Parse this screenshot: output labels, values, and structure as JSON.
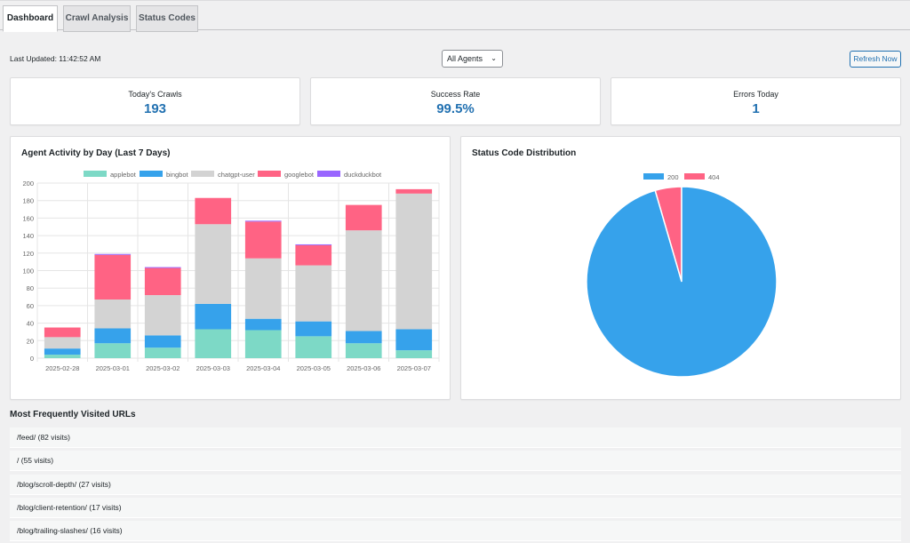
{
  "tabs": [
    {
      "label": "Dashboard",
      "active": true
    },
    {
      "label": "Crawl Analysis",
      "active": false
    },
    {
      "label": "Status Codes",
      "active": false
    }
  ],
  "toolbar": {
    "last_updated": "Last Updated: 11:42:52 AM",
    "agent_filter": "All Agents",
    "refresh_label": "Refresh Now"
  },
  "stats": [
    {
      "label": "Today's Crawls",
      "value": "193"
    },
    {
      "label": "Success Rate",
      "value": "99.5%"
    },
    {
      "label": "Errors Today",
      "value": "1"
    }
  ],
  "activity_panel": {
    "title": "Agent Activity by Day (Last 7 Days)"
  },
  "status_panel": {
    "title": "Status Code Distribution"
  },
  "urls": {
    "title": "Most Frequently Visited URLs",
    "items": [
      "/feed/ (82 visits)",
      "/ (55 visits)",
      "/blog/scroll-depth/ (27 visits)",
      "/blog/client-retention/ (17 visits)",
      "/blog/trailing-slashes/ (16 visits)"
    ]
  },
  "colors": {
    "applebot": "#7dd9c6",
    "bingbot": "#36a2eb",
    "chatgpt-user": "#d3d3d3",
    "googlebot": "#ff6384",
    "duckduckbot": "#9966ff",
    "accent": "#2271b1"
  },
  "chart_data": [
    {
      "type": "bar",
      "stacked": true,
      "categories": [
        "2025-02-28",
        "2025-03-01",
        "2025-03-02",
        "2025-03-03",
        "2025-03-04",
        "2025-03-05",
        "2025-03-06",
        "2025-03-07"
      ],
      "series": [
        {
          "name": "applebot",
          "values": [
            4,
            17,
            12,
            33,
            32,
            25,
            17,
            9
          ]
        },
        {
          "name": "bingbot",
          "values": [
            7,
            17,
            14,
            29,
            13,
            17,
            14,
            24
          ]
        },
        {
          "name": "chatgpt-user",
          "values": [
            13,
            33,
            46,
            91,
            69,
            64,
            115,
            155
          ]
        },
        {
          "name": "googlebot",
          "values": [
            11,
            51,
            31,
            30,
            42,
            23,
            29,
            5
          ]
        },
        {
          "name": "duckduckbot",
          "values": [
            0,
            1,
            1,
            0,
            1,
            1,
            0,
            0
          ]
        }
      ],
      "yticks": [
        0,
        20,
        40,
        60,
        80,
        100,
        120,
        140,
        160,
        180,
        200
      ],
      "ylim": [
        0,
        200
      ],
      "grid": true,
      "legend": "top"
    },
    {
      "type": "pie",
      "labels": [
        "200",
        "404"
      ],
      "values": [
        95.5,
        4.5
      ],
      "legend": "top"
    }
  ]
}
